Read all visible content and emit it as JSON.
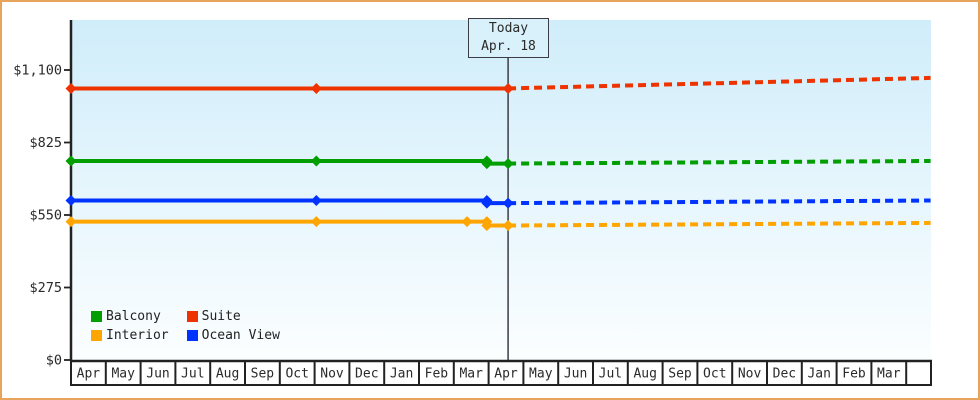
{
  "window": {
    "border_color": "#e7a45c",
    "background": "#ffffff"
  },
  "today_box": {
    "line1": "Today",
    "line2": "Apr. 18"
  },
  "legend": {
    "position": "bottom-left",
    "items": [
      {
        "label": "Balcony",
        "color": "#009e00"
      },
      {
        "label": "Suite",
        "color": "#ee3300"
      },
      {
        "label": "Interior",
        "color": "#ffa500"
      },
      {
        "label": "Ocean View",
        "color": "#0033ff"
      }
    ]
  },
  "chart_data": {
    "type": "line",
    "title": "",
    "xlabel": "",
    "ylabel": "",
    "ylim": [
      0,
      1100
    ],
    "grid": false,
    "yticks": [
      {
        "label": "$0",
        "value": 0
      },
      {
        "label": "$275",
        "value": 275
      },
      {
        "label": "$550",
        "value": 550
      },
      {
        "label": "$825",
        "value": 825
      },
      {
        "label": "$1,100",
        "value": 1100
      }
    ],
    "x_months": [
      "Apr",
      "May",
      "Jun",
      "Jul",
      "Aug",
      "Sep",
      "Oct",
      "Nov",
      "Dec",
      "Jan",
      "Feb",
      "Mar",
      "Apr",
      "May",
      "Jun",
      "Jul",
      "Aug",
      "Sep",
      "Oct",
      "Nov",
      "Dec",
      "Jan",
      "Feb",
      "Mar",
      ""
    ],
    "today": {
      "label": "Today",
      "date": "Apr. 18",
      "month_index": 12.56
    },
    "x_unit": "month_index (0 = first Apr tick, fractional = position within month)",
    "series": [
      {
        "name": "Suite",
        "color": "#ee3300",
        "history": [
          [
            0,
            1030
          ],
          [
            7.05,
            1030
          ],
          [
            12.56,
            1030
          ]
        ],
        "forecast": [
          [
            12.56,
            1030
          ],
          [
            24.7,
            1070
          ]
        ]
      },
      {
        "name": "Balcony",
        "color": "#009e00",
        "history": [
          [
            0,
            755
          ],
          [
            7.05,
            755
          ],
          [
            11.95,
            755
          ],
          [
            11.95,
            745
          ],
          [
            12.56,
            745
          ]
        ],
        "forecast": [
          [
            12.56,
            745
          ],
          [
            24.7,
            755
          ]
        ]
      },
      {
        "name": "Ocean View",
        "color": "#0033ff",
        "history": [
          [
            0,
            605
          ],
          [
            7.05,
            605
          ],
          [
            11.95,
            605
          ],
          [
            11.95,
            595
          ],
          [
            12.56,
            595
          ]
        ],
        "forecast": [
          [
            12.56,
            595
          ],
          [
            24.7,
            605
          ]
        ]
      },
      {
        "name": "Interior",
        "color": "#ffa500",
        "history": [
          [
            0,
            525
          ],
          [
            7.05,
            525
          ],
          [
            11.38,
            525
          ],
          [
            11.95,
            525
          ],
          [
            11.95,
            510
          ],
          [
            12.56,
            510
          ]
        ],
        "forecast": [
          [
            12.56,
            510
          ],
          [
            24.7,
            520
          ]
        ]
      }
    ],
    "colors": {
      "plot_bg_top": "#d0edfa",
      "plot_bg_bottom": "#fbfeff",
      "axis": "#222222",
      "label_text": "#2a2a2a",
      "today_line": "#3c3c46"
    }
  }
}
